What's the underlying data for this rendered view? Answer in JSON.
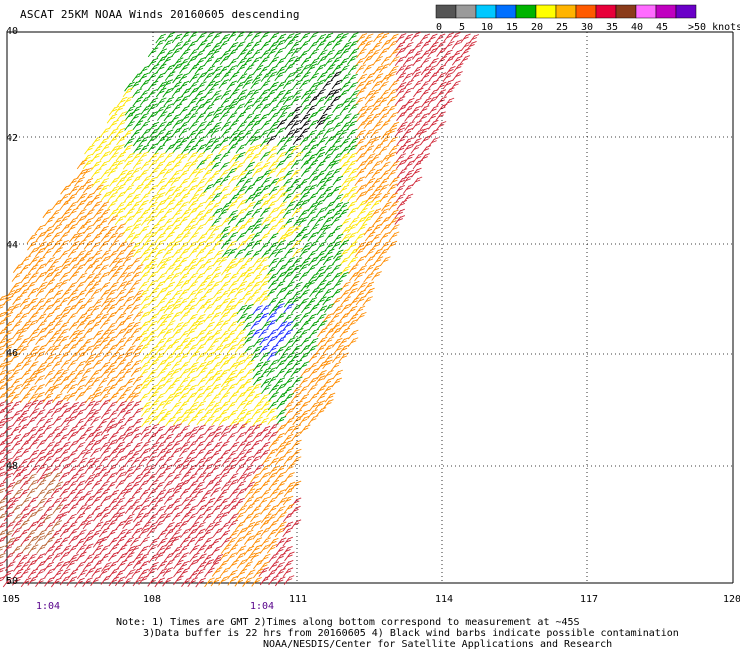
{
  "title": "ASCAT 25KM NOAA Winds 20160605 descending",
  "legend": {
    "unit": ">50 knots",
    "ticks": [
      "0",
      "5",
      "10",
      "15",
      "20",
      "25",
      "30",
      "35",
      "40",
      "45"
    ],
    "colors": [
      "#555555",
      "#9a9a9a",
      "#00c8ff",
      "#0070ff",
      "#00b400",
      "#ffff00",
      "#ffb400",
      "#ff5a00",
      "#e8003a",
      "#8a3b1a",
      "#ff6aff",
      "#c000c0",
      "#6a00c8"
    ]
  },
  "map": {
    "x_ticks": [
      "105",
      "108",
      "111",
      "114",
      "117",
      "120"
    ],
    "y_ticks": [
      "40",
      "42",
      "44",
      "46",
      "48",
      "50"
    ],
    "lon_range": [
      105,
      120
    ],
    "lat_range": [
      40,
      50
    ],
    "grid": "dotted",
    "swath_colors": {
      "west": "#d12a3a",
      "west_brown": "#b9683a",
      "orange": "#ff8c00",
      "yellow": "#ffe600",
      "green": "#00a000",
      "blue": "#1a2aff",
      "black": "#000000"
    }
  },
  "times": [
    "1:04",
    "1:04"
  ],
  "notes": {
    "line1": "Note: 1) Times are GMT 2)Times along bottom correspond to measurement at ~45S",
    "line2": "3)Data buffer is 22 hrs from 20160605 4) Black wind barbs indicate possible contamination",
    "line3": "NOAA/NESDIS/Center for Satellite Applications and Research"
  }
}
